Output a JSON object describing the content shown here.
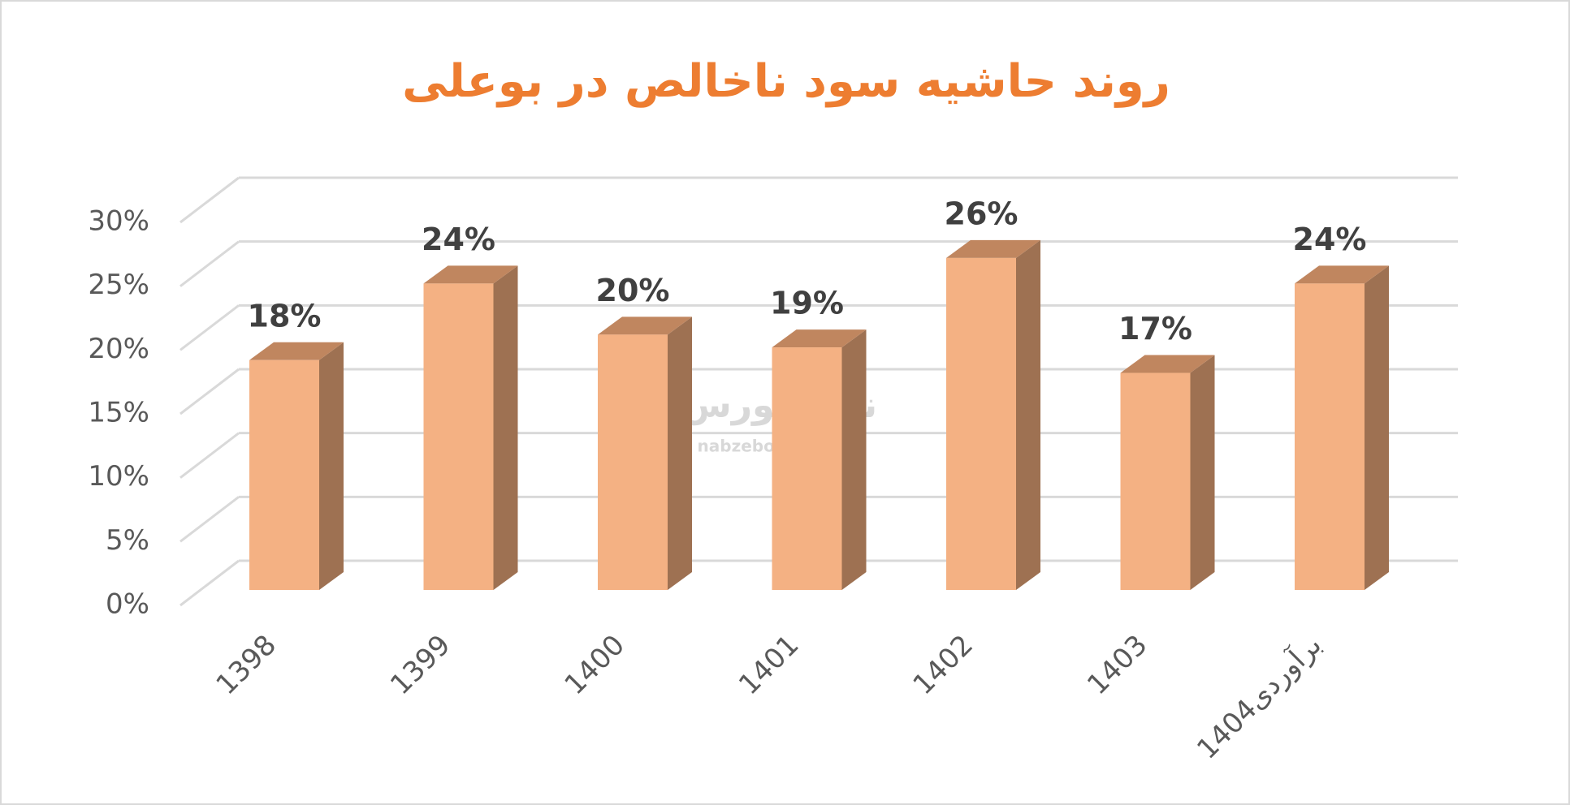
{
  "chart_data": {
    "type": "bar3d",
    "title": "روند حاشیه سود ناخالص در بوعلی",
    "watermark": [
      "نبض بورس",
      "nabzebourse.com"
    ],
    "categories": [
      "1398",
      "1399",
      "1400",
      "1401",
      "1402",
      "1403",
      "1404برآوردی"
    ],
    "values": [
      18,
      24,
      20,
      19,
      26,
      17,
      24
    ],
    "value_labels": [
      "18%",
      "24%",
      "20%",
      "19%",
      "26%",
      "17%",
      "24%"
    ],
    "colors": {
      "front": "#F4B183",
      "side": "#9E7152",
      "top": "#C0865F"
    },
    "ylim": [
      0,
      30
    ],
    "yticks": [
      {
        "value": 0,
        "label": "0%"
      },
      {
        "value": 5,
        "label": "5%"
      },
      {
        "value": 10,
        "label": "10%"
      },
      {
        "value": 15,
        "label": "15%"
      },
      {
        "value": 20,
        "label": "20%"
      },
      {
        "value": 25,
        "label": "25%"
      },
      {
        "value": 30,
        "label": "30%"
      }
    ],
    "grid": true
  }
}
